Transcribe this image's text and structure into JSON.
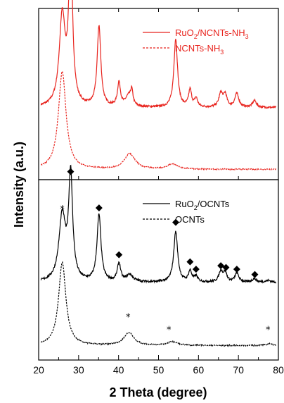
{
  "chart_data": {
    "type": "line",
    "xlabel": "2 Theta (degree)",
    "ylabel": "Intensity (a.u.)",
    "xlim": [
      20,
      80
    ],
    "xticks": [
      "20",
      "30",
      "40",
      "50",
      "60",
      "70",
      "80"
    ],
    "grid": false,
    "panels": [
      {
        "position": "top",
        "legend_placement": "top-right",
        "series": [
          {
            "name": "RuO2/NCNTs-NH3",
            "name_parts": [
              "RuO",
              "2",
              "/NCNTs-NH",
              "3"
            ],
            "color": "#e8231d",
            "dash": "solid",
            "baseline": 0.42,
            "peaks": [
              {
                "x": 25.9,
                "height": 0.52,
                "width": 0.9
              },
              {
                "x": 28.0,
                "height": 0.93,
                "width": 0.55
              },
              {
                "x": 35.1,
                "height": 0.47,
                "width": 0.55
              },
              {
                "x": 40.1,
                "height": 0.14,
                "width": 0.45
              },
              {
                "x": 42.5,
                "height": 0.06,
                "width": 0.9
              },
              {
                "x": 43.3,
                "height": 0.08,
                "width": 0.35
              },
              {
                "x": 54.3,
                "height": 0.4,
                "width": 0.55
              },
              {
                "x": 57.9,
                "height": 0.1,
                "width": 0.45
              },
              {
                "x": 59.4,
                "height": 0.05,
                "width": 0.45
              },
              {
                "x": 65.6,
                "height": 0.08,
                "width": 0.6
              },
              {
                "x": 66.7,
                "height": 0.07,
                "width": 0.5
              },
              {
                "x": 69.6,
                "height": 0.08,
                "width": 0.6
              },
              {
                "x": 74.0,
                "height": 0.04,
                "width": 0.6
              }
            ]
          },
          {
            "name": "NCNTs-NH3",
            "name_parts": [
              "NCNTs-NH",
              "3"
            ],
            "color": "#e8231d",
            "dash": "dashed",
            "baseline": 0.06,
            "peaks": [
              {
                "x": 25.9,
                "height": 0.57,
                "width": 1.15
              },
              {
                "x": 42.8,
                "height": 0.09,
                "width": 1.6
              },
              {
                "x": 53.5,
                "height": 0.03,
                "width": 1.5
              }
            ]
          }
        ]
      },
      {
        "position": "bottom",
        "legend_placement": "top-right",
        "series": [
          {
            "name": "RuO2/OCNTs",
            "name_parts": [
              "RuO",
              "2",
              "/OCNTs",
              ""
            ],
            "color": "#000000",
            "dash": "solid",
            "baseline": 0.43,
            "peaks": [
              {
                "x": 25.9,
                "height": 0.36,
                "width": 1.0
              },
              {
                "x": 28.0,
                "height": 0.58,
                "width": 0.6
              },
              {
                "x": 35.1,
                "height": 0.37,
                "width": 0.6
              },
              {
                "x": 40.1,
                "height": 0.1,
                "width": 0.5
              },
              {
                "x": 42.8,
                "height": 0.04,
                "width": 1.0
              },
              {
                "x": 54.3,
                "height": 0.28,
                "width": 0.6
              },
              {
                "x": 57.9,
                "height": 0.06,
                "width": 0.5
              },
              {
                "x": 59.4,
                "height": 0.03,
                "width": 0.5
              },
              {
                "x": 65.6,
                "height": 0.06,
                "width": 0.6
              },
              {
                "x": 66.7,
                "height": 0.05,
                "width": 0.5
              },
              {
                "x": 69.6,
                "height": 0.05,
                "width": 0.6
              },
              {
                "x": 74.0,
                "height": 0.02,
                "width": 0.6
              },
              {
                "x": 77.5,
                "height": 0.01,
                "width": 0.8
              }
            ]
          },
          {
            "name": "OCNTs",
            "name_parts": [
              "OCNTs",
              "",
              "",
              ""
            ],
            "color": "#000000",
            "dash": "dashed",
            "baseline": 0.08,
            "peaks": [
              {
                "x": 25.9,
                "height": 0.46,
                "width": 1.1
              },
              {
                "x": 42.6,
                "height": 0.07,
                "width": 1.5
              },
              {
                "x": 53.5,
                "height": 0.02,
                "width": 1.5
              },
              {
                "x": 77.8,
                "height": 0.01,
                "width": 1.0
              }
            ]
          }
        ],
        "annotations": [
          {
            "symbol": "*",
            "x": 25.9,
            "y": 0.84
          },
          {
            "symbol": "◆",
            "x": 28.0,
            "y": 1.05
          },
          {
            "symbol": "◆",
            "x": 35.1,
            "y": 0.85
          },
          {
            "symbol": "◆",
            "x": 40.1,
            "y": 0.59
          },
          {
            "symbol": "◆",
            "x": 54.3,
            "y": 0.77
          },
          {
            "symbol": "◆",
            "x": 57.9,
            "y": 0.55
          },
          {
            "symbol": "◆",
            "x": 59.4,
            "y": 0.51
          },
          {
            "symbol": "◆",
            "x": 65.6,
            "y": 0.53
          },
          {
            "symbol": "◆",
            "x": 66.9,
            "y": 0.52
          },
          {
            "symbol": "◆",
            "x": 69.6,
            "y": 0.51
          },
          {
            "symbol": "◆",
            "x": 74.1,
            "y": 0.48
          },
          {
            "symbol": "*",
            "x": 42.4,
            "y": 0.24
          },
          {
            "symbol": "*",
            "x": 52.6,
            "y": 0.17
          },
          {
            "symbol": "*",
            "x": 77.4,
            "y": 0.17
          }
        ]
      }
    ]
  }
}
